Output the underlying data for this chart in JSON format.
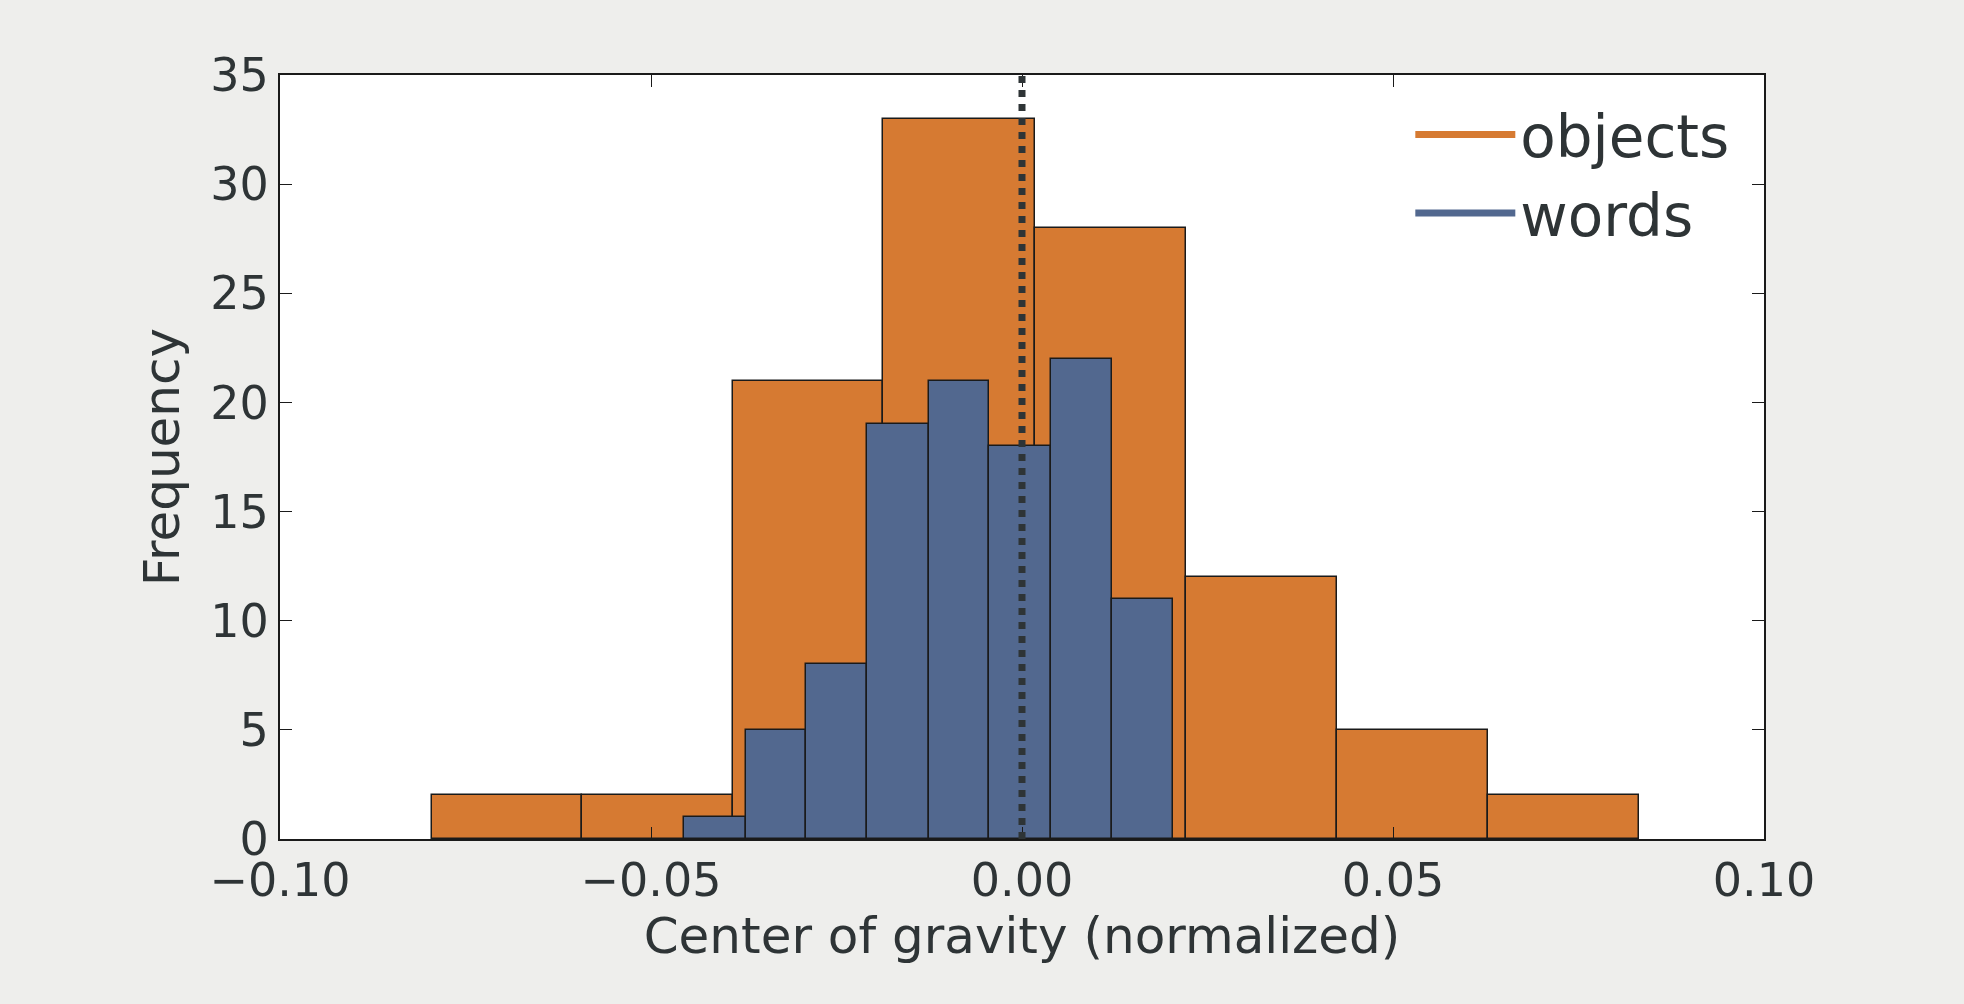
{
  "chart_data": {
    "type": "histogram",
    "xlabel": "Center of gravity (normalized)",
    "ylabel": "Frequency",
    "xlim": [
      -0.1,
      0.1
    ],
    "xticks": [
      {
        "value": -0.1,
        "label": "−0.10"
      },
      {
        "value": -0.05,
        "label": "−0.05"
      },
      {
        "value": 0,
        "label": "0.00"
      },
      {
        "value": 0.05,
        "label": "0.05"
      },
      {
        "value": 0.1,
        "label": "0.10"
      }
    ],
    "ylim": [
      0,
      35
    ],
    "yticks": [
      0,
      5,
      10,
      15,
      20,
      25,
      30,
      35
    ],
    "grid": false,
    "legend": "top right",
    "bins": [
      -0.0795,
      -0.0593,
      -0.0389,
      -0.0187,
      0.0017,
      0.0221,
      0.0424,
      0.0628,
      0.0832
    ],
    "series": [
      {
        "name": "objects",
        "color": "#d67a32",
        "values": [
          2,
          2,
          21,
          33,
          28,
          12,
          5,
          2
        ]
      },
      {
        "name": "words",
        "color": "#52688f",
        "bins": [
          -0.0455,
          -0.0372,
          -0.0291,
          -0.0209,
          -0.0126,
          -0.0044,
          0.0039,
          0.0121,
          0.0204
        ],
        "values": [
          1,
          5,
          8,
          19,
          21,
          18,
          22,
          11
        ]
      }
    ],
    "ref_lines": [
      {
        "axis": "x",
        "value": 0,
        "color": "#2e3436",
        "line_style": "dotted"
      }
    ]
  }
}
